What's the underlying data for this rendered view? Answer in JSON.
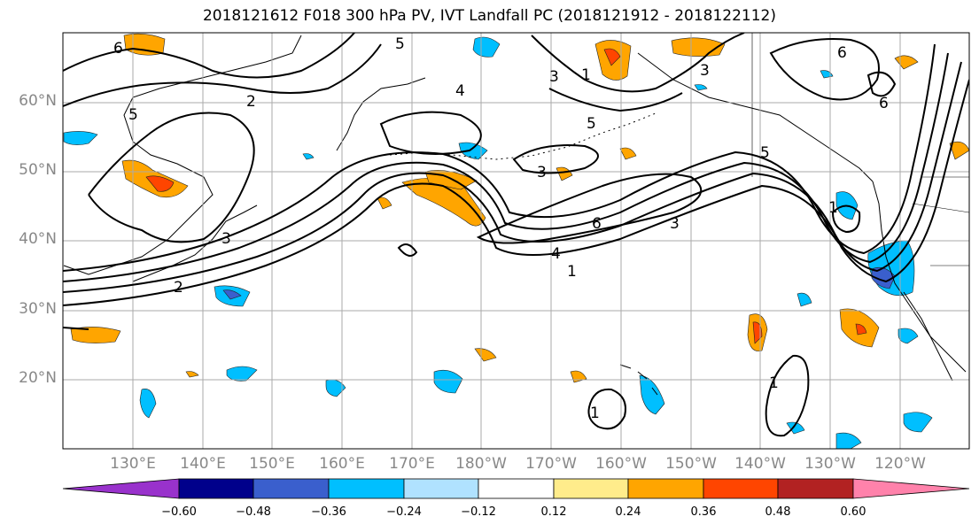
{
  "title": "2018121612 F018 300 hPa PV, IVT Landfall PC (2018121912 - 2018122112)",
  "lat_labels": [
    "60°N",
    "50°N",
    "40°N",
    "30°N",
    "20°N"
  ],
  "lon_labels": [
    "130°E",
    "140°E",
    "150°E",
    "160°E",
    "170°E",
    "180°W",
    "170°W",
    "160°W",
    "150°W",
    "140°W",
    "130°W",
    "120°W"
  ],
  "pv_contour_labels": [
    "6",
    "5",
    "3",
    "2",
    "4",
    "5",
    "1",
    "3",
    "6",
    "5",
    "3",
    "4",
    "1",
    "3",
    "6",
    "5",
    "6",
    "1",
    "1",
    "2",
    "3",
    "1"
  ],
  "colorbar": {
    "tick_labels": [
      "−0.60",
      "−0.48",
      "−0.36",
      "−0.24",
      "−0.12",
      "0.12",
      "0.24",
      "0.36",
      "0.48",
      "0.60"
    ],
    "colors": [
      "#9932CC",
      "#00008B",
      "#3A5FCD",
      "#00BFFF",
      "#B0E2FF",
      "#FFFFFF",
      "#FFEC8B",
      "#FFA500",
      "#FF4500",
      "#B22222",
      "#FF82AB"
    ]
  }
}
